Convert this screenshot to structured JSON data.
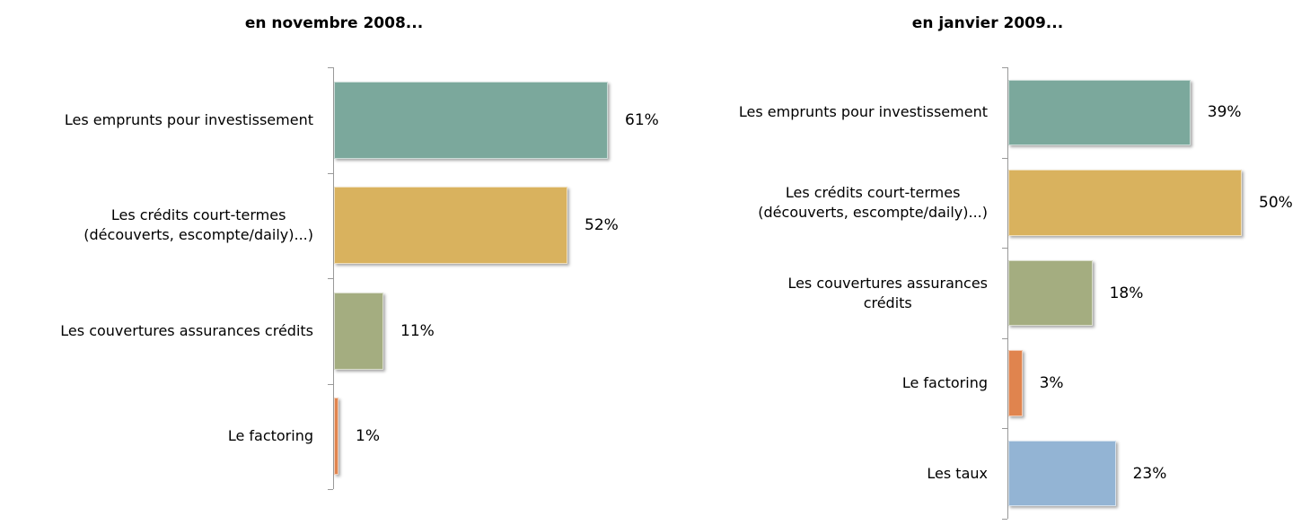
{
  "chart_data": [
    {
      "type": "bar",
      "orientation": "horizontal",
      "title": "en novembre 2008...",
      "categories": [
        "Les emprunts pour investissement",
        "Les crédits court-termes\n(découverts, escompte/daily)...)",
        "Les couvertures assurances crédits",
        "Le factoring"
      ],
      "values": [
        61,
        52,
        11,
        1
      ],
      "value_labels": [
        "61%",
        "52%",
        "11%",
        "1%"
      ],
      "colors": [
        "#7ba89c",
        "#d9b25e",
        "#a4ad80",
        "#e0844e"
      ],
      "xlim": [
        0,
        100
      ]
    },
    {
      "type": "bar",
      "orientation": "horizontal",
      "title": "en janvier 2009...",
      "categories": [
        "Les emprunts pour investissement",
        "Les crédits court-termes\n(découverts, escompte/daily)...)",
        "Les couvertures assurances\ncrédits",
        "Le factoring",
        "Les taux"
      ],
      "values": [
        39,
        50,
        18,
        3,
        23
      ],
      "value_labels": [
        "39%",
        "50%",
        "18%",
        "3%",
        "23%"
      ],
      "colors": [
        "#7ba89c",
        "#d9b25e",
        "#a4ad80",
        "#e0844e",
        "#93b4d4"
      ],
      "xlim": [
        0,
        100
      ]
    }
  ]
}
